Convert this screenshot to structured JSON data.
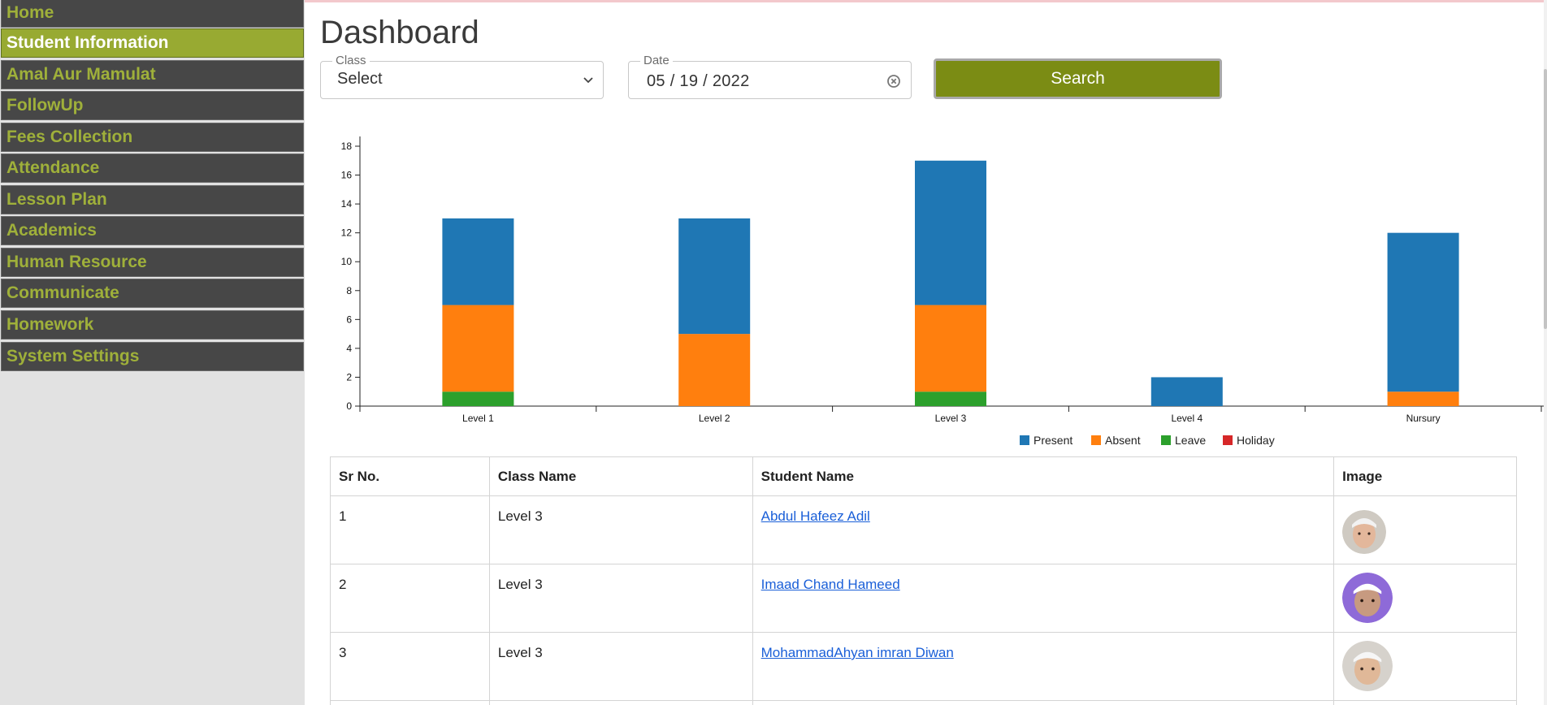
{
  "sidebar": {
    "items": [
      {
        "label": "Home"
      },
      {
        "label": "Student Information"
      },
      {
        "label": "Amal Aur Mamulat"
      },
      {
        "label": "FollowUp"
      },
      {
        "label": "Fees Collection"
      },
      {
        "label": "Attendance"
      },
      {
        "label": "Lesson Plan"
      },
      {
        "label": "Academics"
      },
      {
        "label": "Human Resource"
      },
      {
        "label": "Communicate"
      },
      {
        "label": "Homework"
      },
      {
        "label": "System Settings"
      }
    ],
    "active_index": 1
  },
  "page": {
    "title": "Dashboard"
  },
  "filters": {
    "class_label": "Class",
    "class_value": "Select",
    "date_label": "Date",
    "date_value": "05 / 19 / 2022",
    "search_label": "Search"
  },
  "chart_data": {
    "type": "bar",
    "stacked": true,
    "categories": [
      "Level 1",
      "Level 2",
      "Level 3",
      "Level 4",
      "Nursury"
    ],
    "series": [
      {
        "name": "Present",
        "color": "#1f77b4",
        "values": [
          6,
          8,
          10,
          2,
          11
        ]
      },
      {
        "name": "Absent",
        "color": "#ff7f0e",
        "values": [
          6,
          5,
          6,
          0,
          1
        ]
      },
      {
        "name": "Leave",
        "color": "#2ca02c",
        "values": [
          1,
          0,
          1,
          0,
          0
        ]
      },
      {
        "name": "Holiday",
        "color": "#d62728",
        "values": [
          0,
          0,
          0,
          0,
          0
        ]
      }
    ],
    "ylim": [
      0,
      18
    ],
    "yticks": [
      0,
      2,
      4,
      6,
      8,
      10,
      12,
      14,
      16,
      18
    ],
    "legend_position": "bottom-center",
    "grid": false
  },
  "table": {
    "headers": [
      "Sr No.",
      "Class Name",
      "Student Name",
      "Image"
    ],
    "rows": [
      {
        "sr": "1",
        "class": "Level 3",
        "name": "Abdul Hafeez Adil",
        "avatar": "student-photo-1"
      },
      {
        "sr": "2",
        "class": "Level 3",
        "name": "Imaad Chand Hameed",
        "avatar": "student-photo-2"
      },
      {
        "sr": "3",
        "class": "Level 3",
        "name": "MohammadAhyan imran Diwan",
        "avatar": "student-photo-3"
      }
    ]
  }
}
